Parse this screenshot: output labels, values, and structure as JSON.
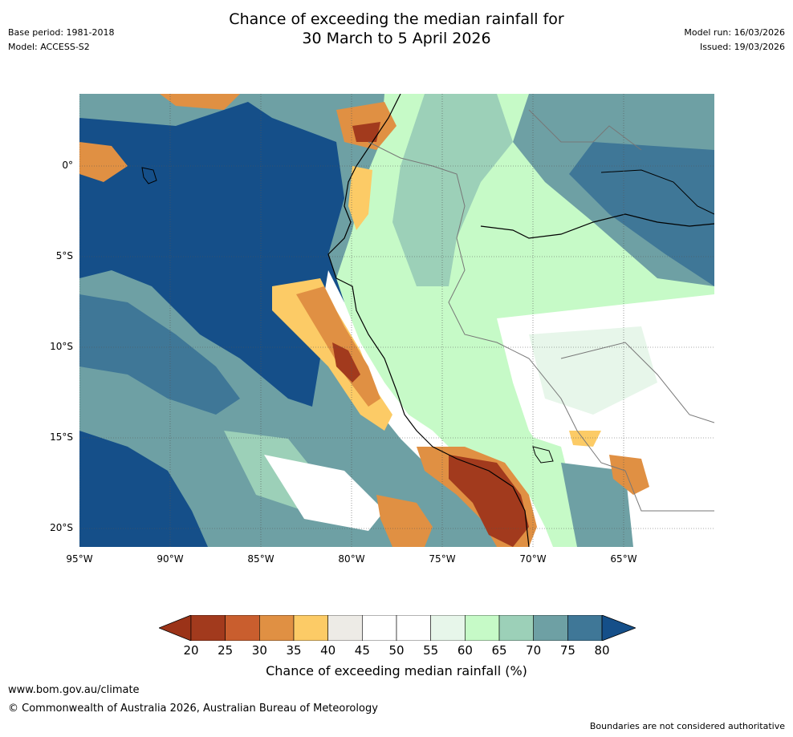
{
  "header": {
    "title_line1": "Chance of exceeding the median rainfall for",
    "title_line2": "30 March to 5 April 2026",
    "base_period": "Base period: 1981-2018",
    "model": "Model: ACCESS-S2",
    "model_run": "Model run: 16/03/2026",
    "issued": "Issued: 19/03/2026"
  },
  "map": {
    "lat_labels": [
      "0°",
      "5°S",
      "10°S",
      "15°S",
      "20°S"
    ],
    "lon_labels": [
      "95°W",
      "90°W",
      "85°W",
      "80°W",
      "75°W",
      "70°W",
      "65°W"
    ],
    "ocean_color": "#154f89",
    "land_color": "#c6fac7"
  },
  "colorbar": {
    "ticks": [
      "20",
      "25",
      "30",
      "35",
      "40",
      "45",
      "50",
      "55",
      "60",
      "65",
      "70",
      "75",
      "80"
    ],
    "colors": [
      "#a23a1d",
      "#c95e2e",
      "#e09043",
      "#fccb66",
      "#edebe6",
      "#ffffff",
      "#ffffff",
      "#e7f6ea",
      "#c6fac7",
      "#9cd0b8",
      "#6ea0a4",
      "#3f7797",
      "#154f89"
    ],
    "below_color": "#9b3318",
    "above_color": "#154f89",
    "label": "Chance of exceeding median rainfall (%)"
  },
  "footer": {
    "url": "www.bom.gov.au/climate",
    "copyright": "© Commonwealth of Australia 2026, Australian Bureau of Meteorology",
    "note": "Boundaries are not considered authoritative"
  }
}
